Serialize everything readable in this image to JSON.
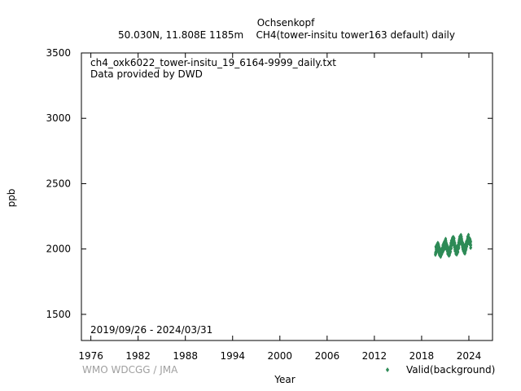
{
  "header": {
    "title": "Ochsenkopf",
    "subtitle": "50.030N, 11.808E 1185m    CH4(tower-insitu tower163 default) daily"
  },
  "annotations": {
    "filename": "ch4_oxk6022_tower-insitu_19_6164-9999_daily.txt",
    "provider": "Data provided by DWD",
    "period": "2019/09/26 - 2024/03/31",
    "credit": "WMO WDCGG / JMA"
  },
  "chart_data": {
    "type": "scatter",
    "title": "Ochsenkopf",
    "xlabel": "Year",
    "ylabel": "ppb",
    "xlim": [
      1974.8,
      2027.0
    ],
    "ylim": [
      1300,
      3500
    ],
    "xticks": [
      1976,
      1982,
      1988,
      1994,
      2000,
      2006,
      2012,
      2018,
      2024
    ],
    "yticks": [
      1500,
      2000,
      2500,
      3000,
      3500
    ],
    "grid": false,
    "legend": "bottom-right",
    "series": [
      {
        "name": "Valid(background)",
        "color": "#2e8b57",
        "marker": "diamond",
        "x": [
          2019.75,
          2019.9,
          2020.0,
          2020.1,
          2020.2,
          2020.35,
          2020.5,
          2020.65,
          2020.8,
          2020.95,
          2021.05,
          2021.2,
          2021.35,
          2021.5,
          2021.65,
          2021.8,
          2021.95,
          2022.05,
          2022.2,
          2022.35,
          2022.5,
          2022.65,
          2022.8,
          2022.95,
          2023.05,
          2023.2,
          2023.35,
          2023.5,
          2023.65,
          2023.8,
          2023.95,
          2024.1,
          2024.25
        ],
        "y": [
          1985,
          2000,
          2015,
          2020,
          1990,
          1970,
          1960,
          1995,
          2025,
          2030,
          2050,
          2010,
          1980,
          1975,
          2000,
          2040,
          2060,
          2080,
          2020,
          1990,
          1985,
          2010,
          2060,
          2090,
          2070,
          2030,
          2000,
          1995,
          2020,
          2060,
          2080,
          2060,
          2030
        ]
      }
    ]
  }
}
